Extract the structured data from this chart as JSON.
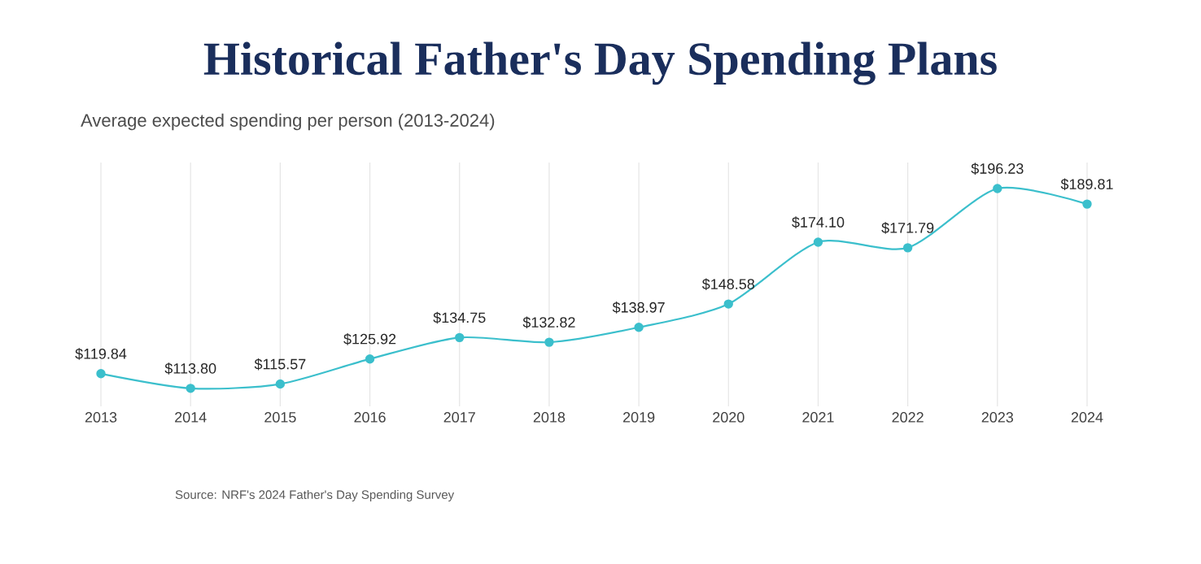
{
  "chart_data": {
    "type": "line",
    "title": "Historical Father's Day Spending Plans",
    "subtitle": "Average expected spending per person (2013-2024)",
    "categories": [
      "2013",
      "2014",
      "2015",
      "2016",
      "2017",
      "2018",
      "2019",
      "2020",
      "2021",
      "2022",
      "2023",
      "2024"
    ],
    "series": [
      {
        "color": "#3bbfcc",
        "values": [
          119.84,
          113.8,
          115.57,
          125.92,
          134.75,
          132.82,
          138.97,
          148.58,
          174.1,
          171.79,
          196.23,
          189.81
        ],
        "value_labels": [
          "$119.84",
          "$113.80",
          "$115.57",
          "$125.92",
          "$134.75",
          "$132.82",
          "$138.97",
          "$148.58",
          "$174.10",
          "$171.79",
          "$196.23",
          "$189.81"
        ]
      }
    ],
    "grid": "x",
    "marker": "circle",
    "line_style": "solid",
    "annotations": [
      "Source: NRF's 2024 Father's Day Spending Survey"
    ]
  }
}
